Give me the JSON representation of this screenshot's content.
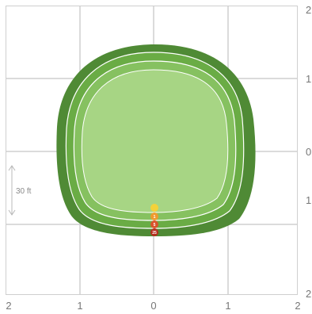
{
  "map": {
    "grid": true,
    "x_ticks": [
      "2",
      "1",
      "0",
      "1",
      "2"
    ],
    "y_ticks": [
      "2",
      "1",
      "0",
      "1",
      "2"
    ],
    "scale_label": "30 ft",
    "rings": [
      {
        "name": "outer-rough",
        "color": "#4f8a35"
      },
      {
        "name": "first-cut",
        "color": "#6aac45"
      },
      {
        "name": "collar",
        "color": "#86c160"
      },
      {
        "name": "green",
        "color": "#a7d584"
      }
    ],
    "grid_color": "#cfcfcf",
    "ring_line_color": "#ffffff",
    "markers": [
      {
        "label": "",
        "color": "#f3d23a"
      },
      {
        "label": "1",
        "color": "#ee9a2f"
      },
      {
        "label": "5",
        "color": "#d9532b"
      },
      {
        "label": "25",
        "color": "#b52d1d"
      }
    ]
  }
}
